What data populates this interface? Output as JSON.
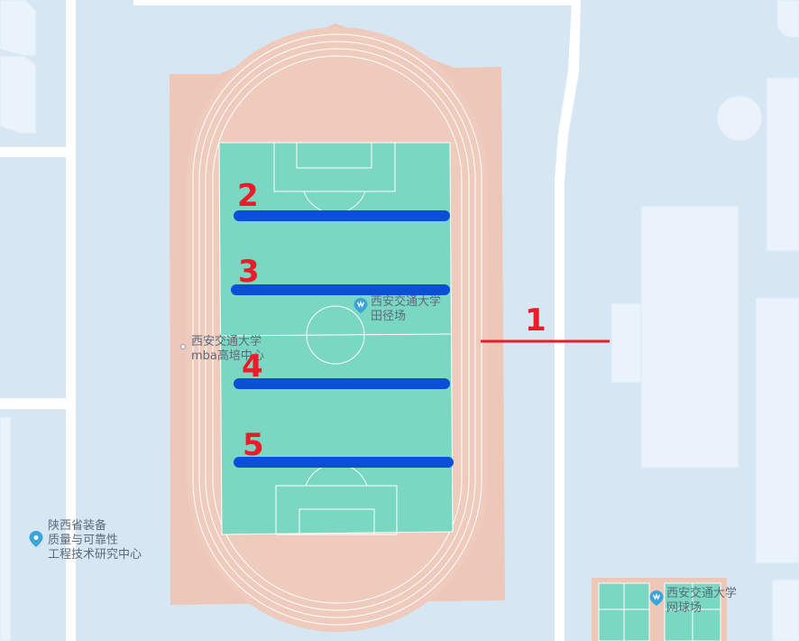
{
  "colors": {
    "background": "#d6e7f3",
    "road": "#ffffff",
    "building": "#eaf3fb",
    "track": "#edc8b9",
    "field": "#7ad7c2",
    "line_blue": "#0b4fd9",
    "line_red": "#e81c2a",
    "marker_text": "#e81c2a",
    "poi_text": "#5a6a7a",
    "poi_pin": "#3aa5d8"
  },
  "pois": {
    "track_field": {
      "line1": "西安交通大学",
      "line2": "田径场",
      "icon": "sports-venue-icon"
    },
    "mba_center": {
      "line1": "西安交通大学",
      "line2": "mba高培中心",
      "icon": "dot-icon"
    },
    "quality_center": {
      "line1": "陕西省装备",
      "line2": "质量与可靠性",
      "line3": "工程技术研究中心",
      "icon": "map-pin-icon"
    },
    "tennis_court": {
      "line1": "西安交通大学",
      "line2": "网球场",
      "icon": "sports-venue-icon"
    }
  },
  "markers": {
    "m1": "1",
    "m2": "2",
    "m3": "3",
    "m4": "4",
    "m5": "5"
  }
}
